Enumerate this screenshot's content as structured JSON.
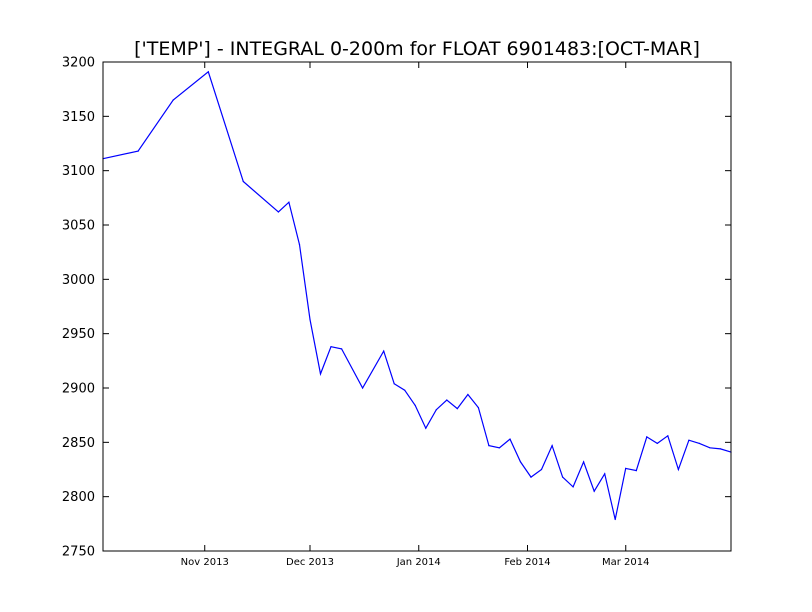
{
  "chart_data": {
    "type": "line",
    "title": "['TEMP'] - INTEGRAL 0-200m for FLOAT 6901483:[OCT-MAR]",
    "xlabel": "",
    "ylabel": "",
    "xlim": [
      "2013-10-03",
      "2014-03-31"
    ],
    "ylim": [
      2750,
      3200
    ],
    "grid": false,
    "legend": "none",
    "line_color": "#0000ff",
    "yticks": [
      2750,
      2800,
      2850,
      2900,
      2950,
      3000,
      3050,
      3100,
      3150,
      3200
    ],
    "yticklabels": [
      "2750",
      "2800",
      "2850",
      "2900",
      "2950",
      "3000",
      "3050",
      "3100",
      "3150",
      "3200"
    ],
    "xticks": [
      "2013-11-01",
      "2013-12-01",
      "2014-01-01",
      "2014-02-01",
      "2014-03-01"
    ],
    "xticklabels": [
      "Nov 2013",
      "Dec 2013",
      "Jan 2014",
      "Feb 2014",
      "Mar 2014"
    ],
    "series": [
      {
        "x": [
          "2013-10-03",
          "2013-10-13",
          "2013-10-23",
          "2013-10-33",
          "2013-11-12",
          "2013-11-22",
          "2013-11-25",
          "2013-11-28",
          "2013-12-01",
          "2013-12-04",
          "2013-12-07",
          "2013-12-10",
          "2013-12-16",
          "2013-12-22",
          "2013-12-25",
          "2013-12-28",
          "2013-12-31",
          "2014-01-03",
          "2014-01-06",
          "2014-01-09",
          "2014-01-12",
          "2014-01-15",
          "2014-01-18",
          "2014-01-21",
          "2014-01-24",
          "2014-01-27",
          "2014-01-30",
          "2014-02-02",
          "2014-02-05",
          "2014-02-08",
          "2014-02-11",
          "2014-02-14",
          "2014-02-17",
          "2014-02-20",
          "2014-02-23",
          "2014-02-26",
          "2014-03-01",
          "2014-03-04",
          "2014-03-07",
          "2014-03-10",
          "2014-03-13",
          "2014-03-16",
          "2014-03-19",
          "2014-03-22",
          "2014-03-25",
          "2014-03-28",
          "2014-03-31"
        ],
        "values": [
          3111,
          3118,
          3165,
          3191,
          3090,
          3062,
          3071,
          3032,
          2963,
          2913,
          2938,
          2936,
          2900,
          2934,
          2904,
          2898,
          2884,
          2863,
          2880,
          2889,
          2881,
          2894,
          2882,
          2847,
          2845,
          2853,
          2832,
          2818,
          2825,
          2847,
          2818,
          2809,
          2832,
          2805,
          2821,
          2779,
          2826,
          2824,
          2855,
          2849,
          2856,
          2825,
          2852,
          2849,
          2845,
          2844,
          2841
        ]
      }
    ]
  }
}
